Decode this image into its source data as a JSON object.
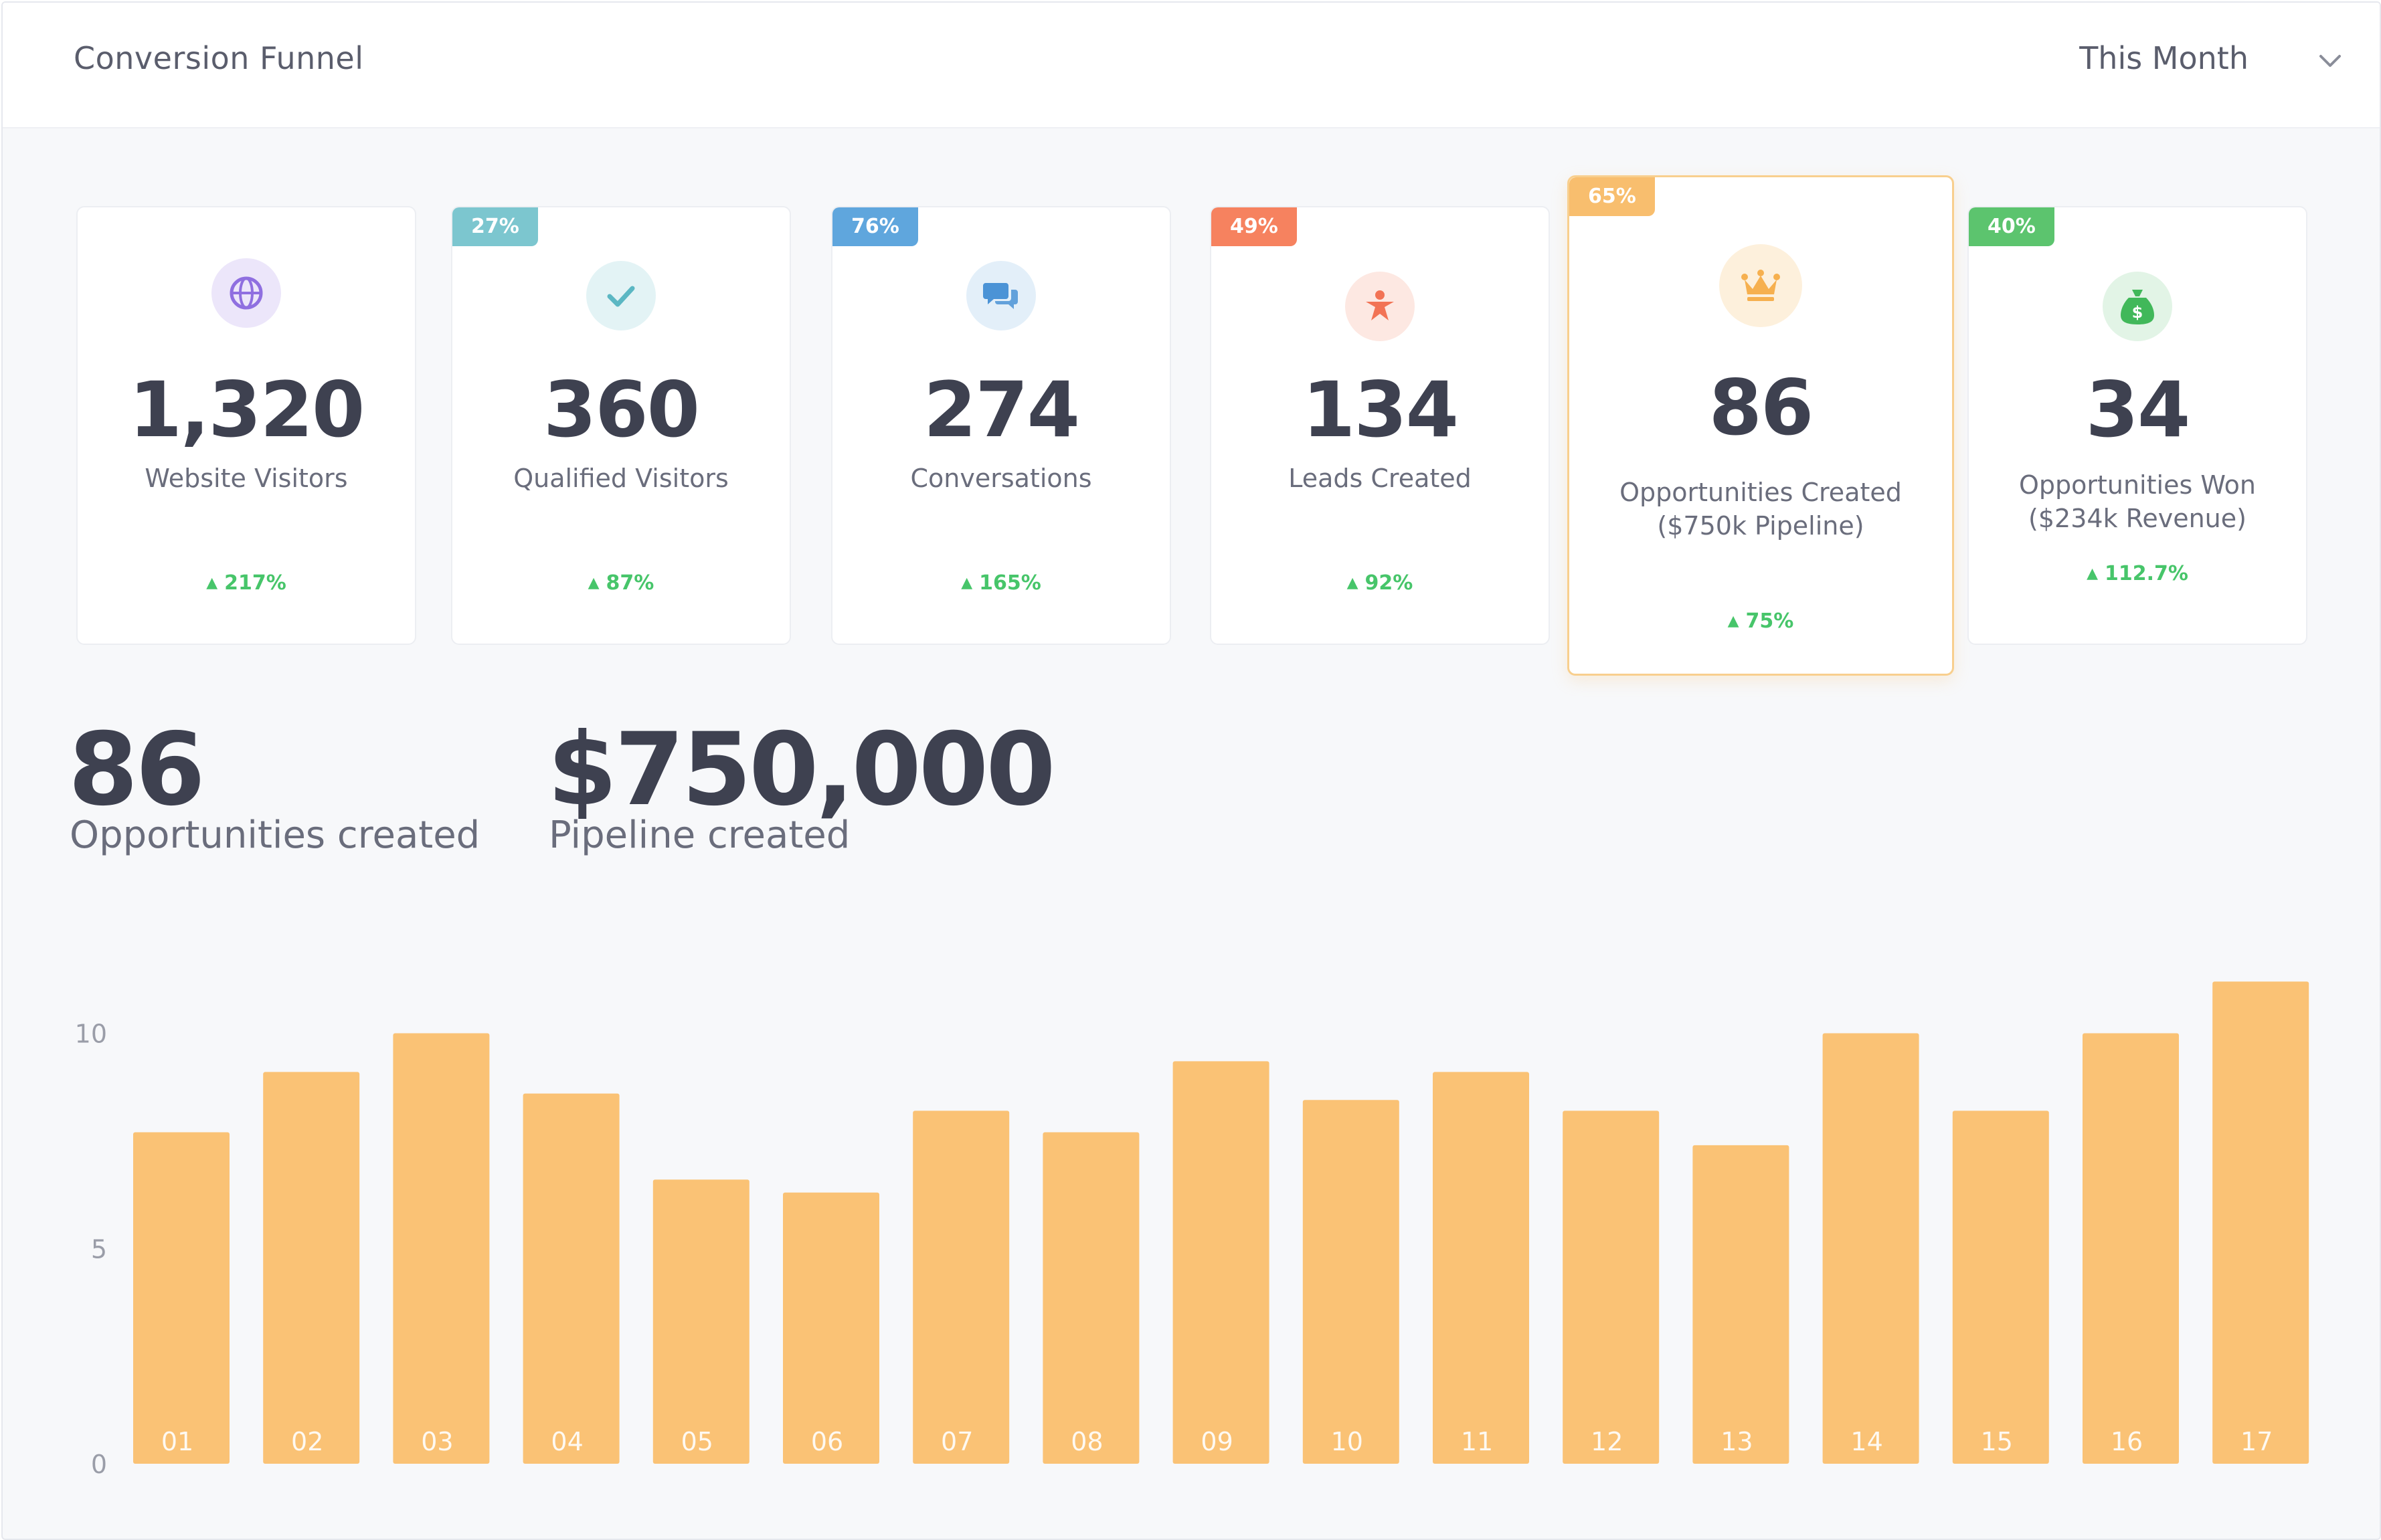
{
  "header": {
    "title": "Conversion Funnel",
    "range_selected": "This Month"
  },
  "cards": [
    {
      "tag": "",
      "tag_color": "",
      "value": "1,320",
      "label": "Website Visitors",
      "delta": "217%",
      "icon": "globe-icon",
      "icon_color": "#8f6fe0",
      "icon_bg": "#ece6fa"
    },
    {
      "tag": "27%",
      "tag_color": "#7cc6cf",
      "value": "360",
      "label": "Qualified Visitors",
      "delta": "87%",
      "icon": "check-icon",
      "icon_color": "#5bb7c3",
      "icon_bg": "#e3f3f5"
    },
    {
      "tag": "76%",
      "tag_color": "#5fa6dd",
      "value": "274",
      "label": "Conversations",
      "delta": "165%",
      "icon": "chat-icon",
      "icon_color": "#4b93d6",
      "icon_bg": "#e3eff9"
    },
    {
      "tag": "49%",
      "tag_color": "#f6825f",
      "value": "134",
      "label": "Leads Created",
      "delta": "92%",
      "icon": "person-icon",
      "icon_color": "#f27355",
      "icon_bg": "#fde8e2"
    },
    {
      "tag": "65%",
      "tag_color": "#f8be6e",
      "value": "86",
      "label": "Opportunities Created",
      "label2": "($750k Pipeline)",
      "delta": "75%",
      "icon": "crown-icon",
      "icon_color": "#f6b04f",
      "icon_bg": "#fdf0dc"
    },
    {
      "tag": "40%",
      "tag_color": "#5cc46e",
      "value": "34",
      "label": "Opportunities Won",
      "label2": "($234k Revenue)",
      "delta": "112.7%",
      "icon": "money-bag-icon",
      "icon_color": "#41b85a",
      "icon_bg": "#e2f4e6"
    }
  ],
  "summary": [
    {
      "value": "86",
      "label": "Opportunities created"
    },
    {
      "value": "$750,000",
      "label": "Pipeline created"
    }
  ],
  "chart_data": {
    "type": "bar",
    "categories": [
      "01",
      "02",
      "03",
      "04",
      "05",
      "06",
      "07",
      "08",
      "09",
      "10",
      "11",
      "12",
      "13",
      "14",
      "15",
      "16",
      "17"
    ],
    "values": [
      7.7,
      9.1,
      10.0,
      8.6,
      6.6,
      6.3,
      8.2,
      7.7,
      9.35,
      8.45,
      9.1,
      8.2,
      7.4,
      10.0,
      8.2,
      10.0,
      11.2
    ],
    "ylim": [
      0,
      11.5
    ],
    "yticks": [
      "0",
      "5",
      "10"
    ],
    "bar_color": "#fac275",
    "grid": false
  }
}
